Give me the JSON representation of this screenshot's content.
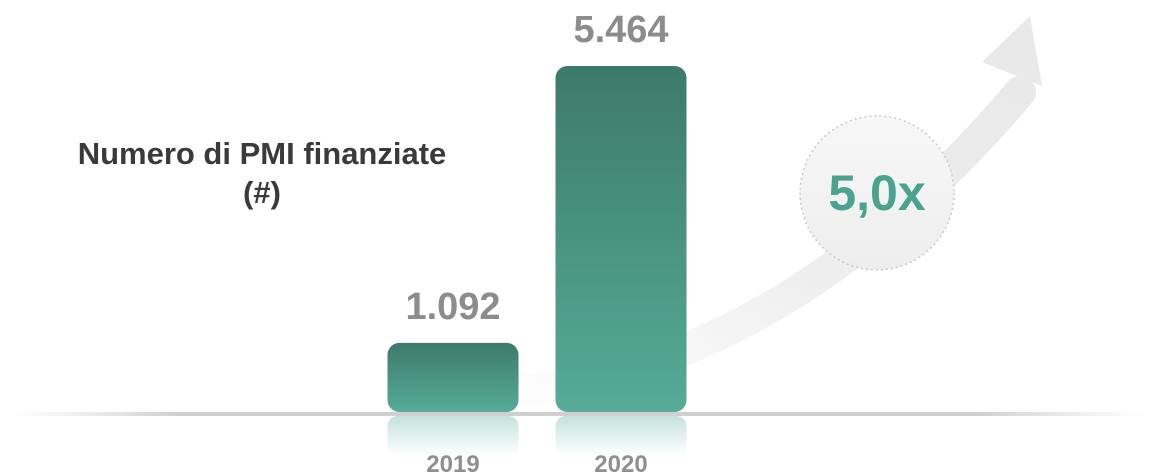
{
  "chart_data": {
    "type": "bar",
    "title_lines": [
      "Numero di PMI finanziate",
      "(#)"
    ],
    "categories": [
      "2019",
      "2020"
    ],
    "values": [
      1092,
      5464
    ],
    "value_labels": [
      "1.092",
      "5.464"
    ],
    "growth_label": "5,0x",
    "ylim": [
      0,
      5464
    ],
    "grid": false,
    "colors": {
      "bar_top": "#3d7a6c",
      "bar_bottom": "#56ab98",
      "accent": "#4aa38f"
    }
  }
}
